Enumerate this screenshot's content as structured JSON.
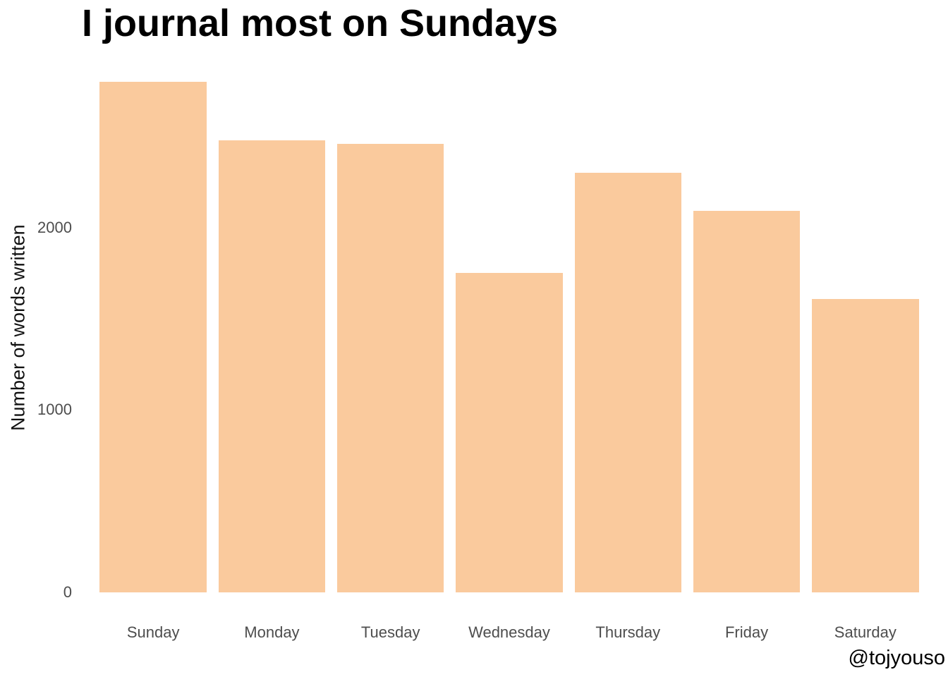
{
  "title": "I journal most on Sundays",
  "watermark": "@tojyouso",
  "chart_data": {
    "type": "bar",
    "title": "I journal most on Sundays",
    "xlabel": "",
    "ylabel": "Number of words written",
    "categories": [
      "Sunday",
      "Monday",
      "Tuesday",
      "Wednesday",
      "Thursday",
      "Friday",
      "Saturday"
    ],
    "values": [
      2800,
      2480,
      2460,
      1750,
      2300,
      2090,
      1610
    ],
    "ylim": [
      0,
      2900
    ],
    "yticks": [
      0,
      1000,
      2000
    ],
    "grid": false,
    "legend": "none",
    "bar_color": "#FACA9D",
    "axis_text_color": "#4D4D4D",
    "axis_title_color": "#111111",
    "title_color": "#000000",
    "background_color": "#FFFFFF"
  }
}
